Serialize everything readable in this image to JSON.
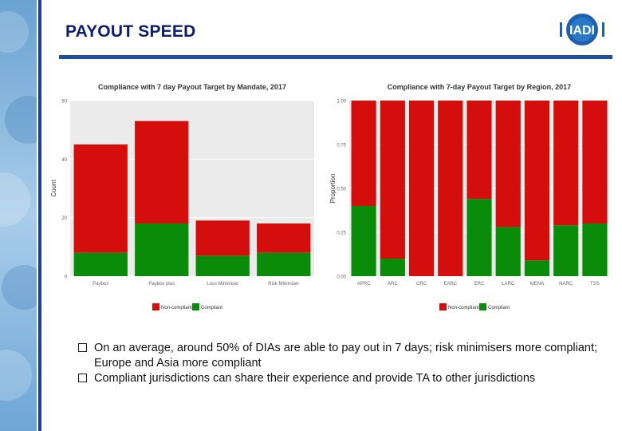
{
  "header": {
    "title": "PAYOUT SPEED",
    "logo_text": "IADI"
  },
  "colors": {
    "non_compliant": "#d40d0d",
    "compliant": "#0a8c0a",
    "panel_bg": "#ebebeb",
    "brand_blue": "#1f4e9c"
  },
  "chart_data": [
    {
      "type": "bar",
      "stacked": true,
      "title": "Compliance with 7 day Payout Target by Mandate, 2017",
      "xlabel": "",
      "ylabel": "Count",
      "ylim": [
        0,
        60
      ],
      "yticks": [
        "0",
        "20",
        "40",
        "60"
      ],
      "categories": [
        "Paybox",
        "Paybox plus",
        "Loss Minimiser",
        "Risk Minimiser"
      ],
      "series": [
        {
          "name": "Non-compliant",
          "color": "#d40d0d",
          "values": [
            37,
            35,
            12,
            10
          ]
        },
        {
          "name": "Compliant",
          "color": "#0a8c0a",
          "values": [
            8,
            18,
            7,
            8
          ]
        }
      ],
      "legend": {
        "position": "bottom",
        "entries": [
          "Non-compliant",
          "Compliant"
        ]
      },
      "grid": true
    },
    {
      "type": "bar",
      "stacked": true,
      "title": "Compliance with 7-day Payout Target by Region, 2017",
      "xlabel": "",
      "ylabel": "Proportion",
      "ylim": [
        0,
        1
      ],
      "yticks": [
        "0.00",
        "0.25",
        "0.50",
        "0.75",
        "1.00"
      ],
      "categories": [
        "APRC",
        "ARC",
        "CRC",
        "EARC",
        "ERC",
        "LARC",
        "MENA",
        "NARC",
        "TSS"
      ],
      "series": [
        {
          "name": "Non-compliant",
          "color": "#d40d0d",
          "values": [
            0.6,
            0.9,
            1.0,
            1.0,
            0.56,
            0.72,
            0.91,
            0.71,
            0.7
          ]
        },
        {
          "name": "Compliant",
          "color": "#0a8c0a",
          "values": [
            0.4,
            0.1,
            0.0,
            0.0,
            0.44,
            0.28,
            0.09,
            0.29,
            0.3
          ]
        }
      ],
      "legend": {
        "position": "bottom",
        "entries": [
          "Non-compliant",
          "Compliant"
        ]
      },
      "grid": true
    }
  ],
  "bullets": [
    "On an average, around 50% of DIAs are able to pay out in 7 days; risk minimisers more compliant; Europe and Asia more compliant",
    "Compliant jurisdictions can share their experience and provide TA to other jurisdictions"
  ]
}
